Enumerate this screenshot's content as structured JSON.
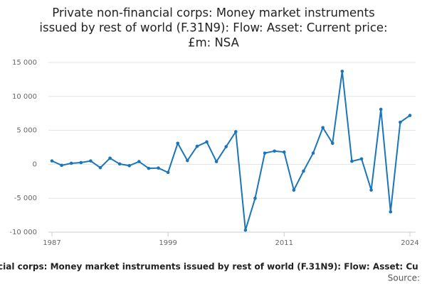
{
  "chart_data": {
    "type": "line",
    "title": [
      "Private non-financial corps: Money market instruments",
      "issued by rest of world (F.31N9): Flow: Asset: Current price:",
      "£m: NSA"
    ],
    "footer": "cial corps: Money market instruments issued by rest of world (F.31N9): Flow: Asset: Cu",
    "source": "Source:",
    "x": [
      1987,
      1988,
      1989,
      1990,
      1991,
      1992,
      1993,
      1994,
      1995,
      1996,
      1997,
      1998,
      1999,
      2000,
      2001,
      2002,
      2003,
      2004,
      2005,
      2006,
      2007,
      2008,
      2009,
      2010,
      2011,
      2012,
      2013,
      2014,
      2015,
      2016,
      2017,
      2018,
      2019,
      2020,
      2021,
      2022,
      2023,
      2024
    ],
    "values": [
      500,
      -150,
      150,
      250,
      500,
      -500,
      900,
      50,
      -200,
      400,
      -600,
      -550,
      -1200,
      3100,
      550,
      2650,
      3300,
      400,
      2600,
      4800,
      -9700,
      -5000,
      1650,
      1950,
      1800,
      -3800,
      -1000,
      1650,
      5400,
      3100,
      13700,
      450,
      800,
      -3800,
      8100,
      -7000,
      6200,
      7200
    ],
    "color": "#1b75bb",
    "xlim": [
      1987,
      2024
    ],
    "xticks": [
      1987,
      1999,
      2011,
      2024
    ],
    "ylim": [
      -10000,
      15000
    ],
    "yticks": [
      {
        "value": -10000,
        "label": "-10 000"
      },
      {
        "value": -5000,
        "label": "-5 000"
      },
      0,
      {
        "value": 5000,
        "label": "5 000"
      },
      {
        "value": 10000,
        "label": "10 000"
      },
      {
        "value": 15000,
        "label": "15 000"
      }
    ],
    "grid": true
  }
}
